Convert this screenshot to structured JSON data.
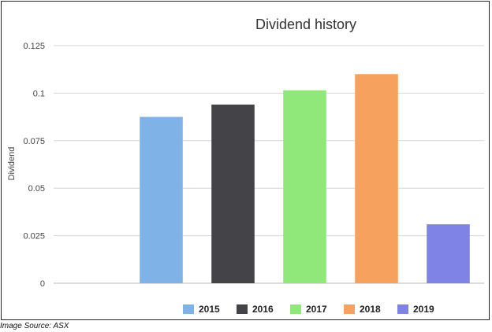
{
  "chart_data": {
    "type": "bar",
    "title": "Dividend history",
    "xlabel": "",
    "ylabel": "Dividend",
    "ylim": [
      0,
      0.125
    ],
    "yticks": [
      0,
      0.025,
      0.05,
      0.075,
      0.1,
      0.125
    ],
    "ytick_labels": [
      "0",
      "0.025",
      "0.05",
      "0.075",
      "0.1",
      "0.125"
    ],
    "categories": [
      "",
      "2015",
      "2016",
      "2017",
      "2018",
      "2019"
    ],
    "values": [
      0,
      0.0875,
      0.094,
      0.1015,
      0.11,
      0.031
    ],
    "colors": [
      "#ffffff",
      "#7fb3e8",
      "#444448",
      "#90e87b",
      "#f7a15e",
      "#8083e6"
    ],
    "grid": true,
    "legend_position": "bottom",
    "legend": [
      {
        "label": "2015",
        "color": "#7fb3e8"
      },
      {
        "label": "2016",
        "color": "#444448"
      },
      {
        "label": "2017",
        "color": "#90e87b"
      },
      {
        "label": "2018",
        "color": "#f7a15e"
      },
      {
        "label": "2019",
        "color": "#8083e6"
      }
    ]
  },
  "source_note": "Image Source: ASX"
}
